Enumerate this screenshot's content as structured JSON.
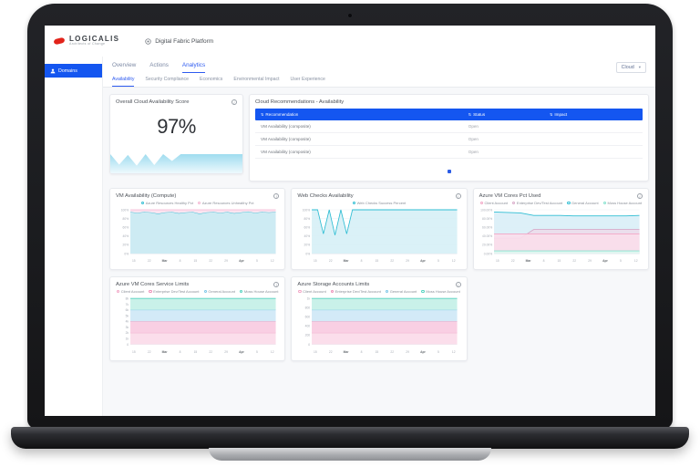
{
  "header": {
    "brand": "LOGICALIS",
    "tagline": "Architects of Change",
    "app_title": "Digital Fabric Platform"
  },
  "sidebar": {
    "items": [
      {
        "label": "Domains"
      }
    ]
  },
  "toolbar": {
    "tabs": [
      "Overview",
      "Actions",
      "Analytics"
    ],
    "active_tab": "Analytics",
    "subtabs": [
      "Availability",
      "Security Compliance",
      "Economics",
      "Environmental Impact",
      "User Experience"
    ],
    "active_subtab": "Availability",
    "filter_label": "Cloud"
  },
  "icons": {
    "info": "i",
    "caret": "▾",
    "sort": "⇅"
  },
  "colors": {
    "accent_blue": "#1456f0",
    "teal": "#2fbdd3",
    "pink": "#f2a6c6",
    "mint": "#54d2c0",
    "light_blue": "#7fc7e8"
  },
  "score_card": {
    "title": "Overall Cloud Availability Score",
    "value": "97%",
    "spark": [
      75,
      34,
      72,
      30,
      75,
      32,
      75,
      48,
      75,
      75,
      75,
      75,
      75,
      75,
      75,
      75
    ]
  },
  "recommendations": {
    "title": "Cloud Recommendations - Availability",
    "columns": [
      "Recommendation",
      "Status",
      "Impact"
    ],
    "rows": [
      {
        "recommendation": "VM Availability (composite)",
        "status": "Open",
        "impact": ""
      },
      {
        "recommendation": "VM Availability (composite)",
        "status": "Open",
        "impact": ""
      },
      {
        "recommendation": "VM Availability (composite)",
        "status": "Open",
        "impact": ""
      }
    ]
  },
  "chart_data": [
    {
      "type": "area",
      "title": "VM Availability (Compute)",
      "stacked": true,
      "ymax": 100,
      "y_ticks": [
        "0%",
        "20%",
        "40%",
        "60%",
        "80%",
        "100%"
      ],
      "x_labels": [
        "15",
        "22",
        "Mar",
        "8",
        "15",
        "22",
        "29",
        "Apr",
        "5",
        "12"
      ],
      "series": [
        {
          "name": "Azure Resources Healthy Pct",
          "color": "#2fbdd3",
          "fill": "#cdebf3",
          "values": [
            95,
            93,
            95,
            94,
            91,
            94,
            95,
            92,
            94,
            95,
            91,
            94,
            95,
            93,
            95,
            92,
            94,
            96,
            93,
            95,
            94,
            95
          ]
        },
        {
          "name": "Azure Resources Unhealthy Pct",
          "color": "#f5b5d2",
          "fill": "#fce4f0",
          "values": [
            5,
            7,
            5,
            6,
            9,
            6,
            5,
            8,
            6,
            5,
            9,
            6,
            5,
            7,
            5,
            8,
            6,
            4,
            7,
            5,
            6,
            5
          ]
        }
      ]
    },
    {
      "type": "line",
      "title": "Web Checks Availability",
      "stacked": false,
      "ymax": 100,
      "y_ticks": [
        "0%",
        "20%",
        "40%",
        "60%",
        "80%",
        "100%"
      ],
      "x_labels": [
        "15",
        "22",
        "Mar",
        "8",
        "15",
        "22",
        "29",
        "Apr",
        "5",
        "12"
      ],
      "series": [
        {
          "name": "Web Checks Success Percent",
          "color": "#2fbdd3",
          "fill": "#d6eff6",
          "values": [
            100,
            100,
            45,
            100,
            42,
            100,
            45,
            100,
            100,
            100,
            100,
            100,
            100,
            100,
            100,
            100,
            100,
            100,
            100,
            100,
            100,
            100,
            100,
            100,
            100,
            100
          ]
        }
      ]
    },
    {
      "type": "line",
      "title": "Azure VM Cores Pct Used",
      "stacked": false,
      "ymax": 100,
      "y_ticks": [
        "0.00%",
        "20.00%",
        "40.00%",
        "60.00%",
        "80.00%",
        "100.00%"
      ],
      "x_labels": [
        "15",
        "22",
        "Mar",
        "8",
        "15",
        "22",
        "29",
        "Apr",
        "5",
        "12"
      ],
      "series": [
        {
          "name": "Client Account",
          "color": "#f2a6c6",
          "fill": "#fbdeeb",
          "values": [
            45,
            45,
            45,
            45,
            45,
            45,
            45,
            45,
            45,
            45,
            45,
            45
          ]
        },
        {
          "name": "Enterprise Dev/Test Account",
          "color": "#d8a9c9",
          "fill": "#ecdcea",
          "values": [
            35,
            35,
            35,
            55,
            55,
            55,
            55,
            55,
            55,
            55,
            55,
            55
          ]
        },
        {
          "name": "General Account",
          "color": "#2fbdd3",
          "fill": "#d9eef7",
          "values": [
            95,
            94,
            93,
            87,
            87,
            87,
            86,
            86,
            86,
            86,
            86,
            87
          ]
        },
        {
          "name": "Moss House Account",
          "color": "#86e2cf",
          "fill": "#def7f1",
          "values": [
            6,
            6,
            6,
            6,
            6,
            6,
            6,
            6,
            6,
            6,
            6,
            6
          ]
        }
      ]
    },
    {
      "type": "area",
      "title": "Azure VM Cores Service Limits",
      "stacked": true,
      "ymax": 8000,
      "y_ticks": [
        "0",
        "1k",
        "2k",
        "3k",
        "4k",
        "5k",
        "6k",
        "7k",
        "8k"
      ],
      "x_labels": [
        "15",
        "22",
        "Mar",
        "8",
        "15",
        "22",
        "29",
        "Apr",
        "5",
        "12"
      ],
      "series": [
        {
          "name": "Client Account",
          "color": "#f2a6c6",
          "fill": "#fbdeeb",
          "values": [
            2000,
            2000,
            2000,
            2000,
            2000,
            2000,
            2000,
            2000,
            2000,
            2000
          ]
        },
        {
          "name": "Enterprise Dev/Test Account",
          "color": "#ee8fb8",
          "fill": "#f9cfe3",
          "values": [
            2000,
            2000,
            2000,
            2000,
            2000,
            2000,
            2000,
            2000,
            2000,
            2000
          ]
        },
        {
          "name": "General Account",
          "color": "#7fc7e8",
          "fill": "#d3eaf7",
          "values": [
            2000,
            2000,
            2000,
            2000,
            2000,
            2000,
            2000,
            2000,
            2000,
            2000
          ]
        },
        {
          "name": "Moss House Account",
          "color": "#54d2c0",
          "fill": "#c9f1e9",
          "values": [
            2000,
            2000,
            2000,
            2000,
            2000,
            2000,
            2000,
            2000,
            2000,
            2000
          ]
        }
      ]
    },
    {
      "type": "area",
      "title": "Azure Storage Accounts Limits",
      "stacked": true,
      "ymax": 1000,
      "y_ticks": [
        "0",
        "200",
        "400",
        "600",
        "800",
        "1k"
      ],
      "x_labels": [
        "15",
        "22",
        "Mar",
        "8",
        "15",
        "22",
        "29",
        "Apr",
        "5",
        "12"
      ],
      "series": [
        {
          "name": "Client Account",
          "color": "#f2a6c6",
          "fill": "#fbdeeb",
          "values": [
            250,
            250,
            250,
            250,
            250,
            250,
            250,
            250,
            250,
            250
          ]
        },
        {
          "name": "Enterprise Dev/Test Account",
          "color": "#ee8fb8",
          "fill": "#f9cfe3",
          "values": [
            250,
            250,
            250,
            250,
            250,
            250,
            250,
            250,
            250,
            250
          ]
        },
        {
          "name": "General Account",
          "color": "#7fc7e8",
          "fill": "#d3eaf7",
          "values": [
            250,
            250,
            250,
            250,
            250,
            250,
            250,
            250,
            250,
            250
          ]
        },
        {
          "name": "Moss House Account",
          "color": "#54d2c0",
          "fill": "#c9f1e9",
          "values": [
            250,
            250,
            250,
            250,
            250,
            250,
            250,
            250,
            250,
            250
          ]
        }
      ]
    }
  ]
}
